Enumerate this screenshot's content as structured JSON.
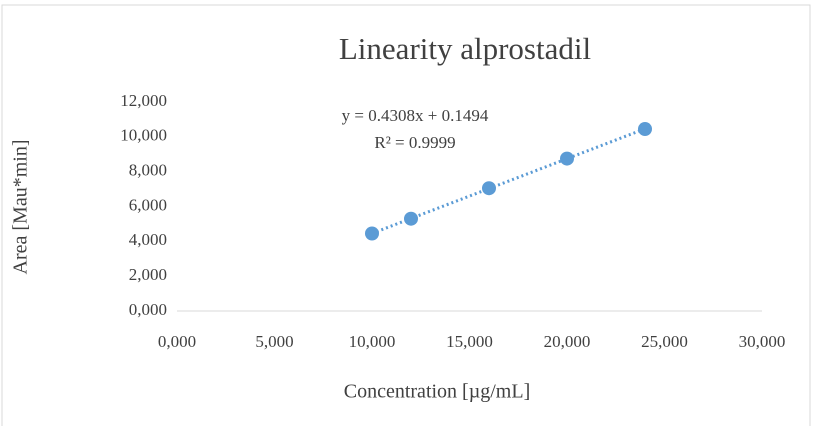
{
  "chart_data": {
    "type": "scatter",
    "title": "Linearity alprostadil",
    "x_label": "Concentration [µg/mL]",
    "y_label": "Area [Mau*min]",
    "annotations": [
      "y = 0.4308x + 0.1494",
      "R² = 0.9999"
    ],
    "x": [
      10,
      12,
      16,
      20,
      24
    ],
    "values": [
      4.45,
      5.3,
      7.05,
      8.75,
      10.45
    ],
    "color": "#5b9bd5",
    "trendline": true,
    "grid": false,
    "xlim": [
      0,
      30
    ],
    "ylim": [
      0,
      12
    ],
    "xticks": [
      {
        "value": 0,
        "label": "0,000"
      },
      {
        "value": 5,
        "label": "5,000"
      },
      {
        "value": 10,
        "label": "10,000"
      },
      {
        "value": 15,
        "label": "15,000"
      },
      {
        "value": 20,
        "label": "20,000"
      },
      {
        "value": 25,
        "label": "25,000"
      },
      {
        "value": 30,
        "label": "30,000"
      }
    ],
    "yticks": [
      {
        "value": 0,
        "label": "0,000"
      },
      {
        "value": 2,
        "label": "2,000"
      },
      {
        "value": 4,
        "label": "4,000"
      },
      {
        "value": 6,
        "label": "6,000"
      },
      {
        "value": 8,
        "label": "8,000"
      },
      {
        "value": 10,
        "label": "10,000"
      },
      {
        "value": 12,
        "label": "12,000"
      }
    ]
  }
}
